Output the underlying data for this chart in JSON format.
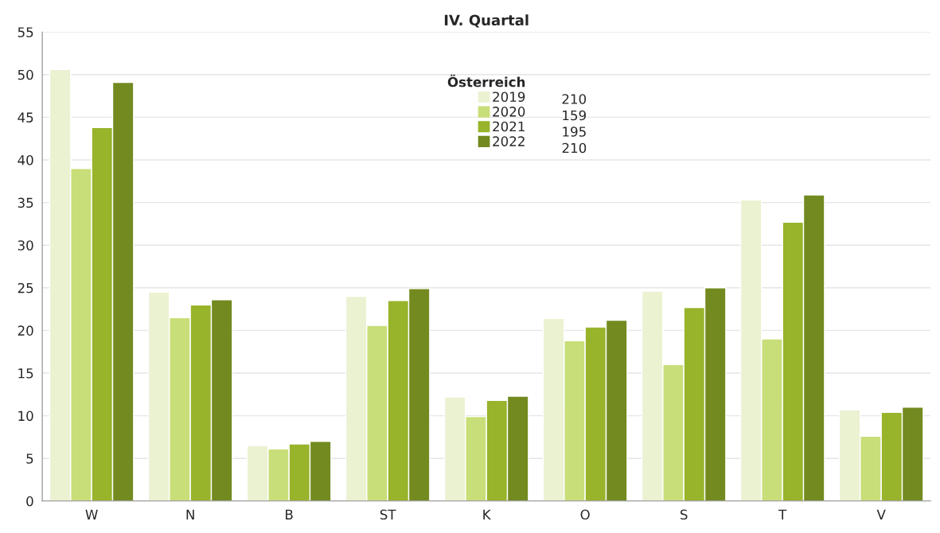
{
  "chart_data": {
    "type": "bar",
    "title": "IV. Quartal",
    "legend_title": "Österreich",
    "categories": [
      "W",
      "N",
      "B",
      "ST",
      "K",
      "O",
      "S",
      "T",
      "V"
    ],
    "series": [
      {
        "name": "2019",
        "color": "#ebf2d2",
        "values": [
          50.6,
          24.5,
          6.5,
          24.0,
          12.2,
          21.4,
          24.6,
          35.3,
          10.7
        ]
      },
      {
        "name": "2020",
        "color": "#c8de78",
        "values": [
          39.0,
          21.5,
          6.1,
          20.6,
          9.9,
          18.8,
          16.0,
          19.0,
          7.6
        ]
      },
      {
        "name": "2021",
        "color": "#97b42b",
        "values": [
          43.8,
          23.0,
          6.7,
          23.5,
          11.8,
          20.4,
          22.7,
          32.7,
          10.4
        ]
      },
      {
        "name": "2022",
        "color": "#728a1f",
        "values": [
          49.1,
          23.6,
          7.0,
          24.9,
          12.3,
          21.2,
          25.0,
          35.9,
          11.0
        ]
      }
    ],
    "annotations": [
      "210",
      "159",
      "195",
      "210"
    ],
    "ylim": [
      0,
      55
    ],
    "yticks": [
      0,
      5,
      10,
      15,
      20,
      25,
      30,
      35,
      40,
      45,
      50,
      55
    ],
    "grid": "y",
    "legend": "top"
  }
}
